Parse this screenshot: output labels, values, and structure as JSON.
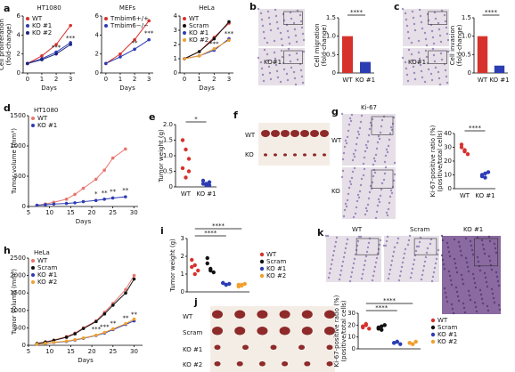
{
  "chart_data": [
    {
      "type": "line",
      "panel": "a",
      "title": "HT1080",
      "x": [
        0,
        1,
        2,
        3
      ],
      "xlim": [
        -0.3,
        3.3
      ],
      "xticks": [
        0,
        1,
        2,
        3
      ],
      "xlabel": "Days",
      "ylabel": [
        "Cell proliferation",
        "(fold-change)"
      ],
      "ylim": [
        0,
        6
      ],
      "yticks": [
        0,
        2,
        4,
        6
      ],
      "legend": "upper left",
      "series": [
        {
          "name": "WT",
          "color": "#d7312c",
          "values": [
            1,
            1.8,
            3,
            5
          ]
        },
        {
          "name": "KO #1",
          "color": "#2c3db3",
          "values": [
            1,
            1.5,
            2.2,
            3.2
          ]
        },
        {
          "name": "KO #2",
          "color": "#1a237e",
          "values": [
            1,
            1.4,
            2,
            3
          ]
        }
      ],
      "annotations": [
        "***",
        "***"
      ]
    },
    {
      "type": "line",
      "title": "MEFs",
      "x": [
        0,
        1,
        2,
        3
      ],
      "xlim": [
        -0.3,
        3.3
      ],
      "xticks": [
        0,
        1,
        2,
        3
      ],
      "xlabel": "Days",
      "ylim": [
        0,
        6
      ],
      "yticks": [
        0,
        2,
        4,
        6
      ],
      "legend": "upper left",
      "series": [
        {
          "name": "Tmbim6+/+",
          "color": "#d7312c",
          "values": [
            1,
            2,
            3.5,
            5.5
          ]
        },
        {
          "name": "Tmbim6−/−",
          "color": "#2c3db3",
          "values": [
            1,
            1.7,
            2.5,
            3.5
          ]
        }
      ],
      "annotations": [
        "**",
        "***"
      ]
    },
    {
      "type": "line",
      "title": "HeLa",
      "x": [
        0,
        1,
        2,
        3
      ],
      "xlim": [
        -0.3,
        3.3
      ],
      "xticks": [
        0,
        1,
        2,
        3
      ],
      "xlabel": "Days",
      "ylim": [
        0,
        4
      ],
      "yticks": [
        0,
        1,
        2,
        3,
        4
      ],
      "legend": "upper left",
      "series": [
        {
          "name": "WT",
          "color": "#d7312c",
          "values": [
            1,
            1.5,
            2.5,
            3.5
          ]
        },
        {
          "name": "Scram",
          "color": "#111111",
          "values": [
            1,
            1.5,
            2.4,
            3.6
          ]
        },
        {
          "name": "KO #1",
          "color": "#2c3db3",
          "values": [
            1,
            1.2,
            1.6,
            2.4
          ]
        },
        {
          "name": "KO #2",
          "color": "#f0a030",
          "values": [
            1,
            1.2,
            1.7,
            2.3
          ]
        }
      ],
      "annotations": [
        "***",
        "***"
      ]
    },
    {
      "type": "bar",
      "categories": [
        "WT",
        "KO #1"
      ],
      "values": [
        1,
        0.3
      ],
      "colors": [
        "#d7312c",
        "#2c3db3"
      ],
      "ylabel": [
        "Cell migration",
        "(fold-change)"
      ],
      "ylim": [
        0,
        1.5
      ],
      "yticks": [
        0,
        0.5,
        {
          "value": 1,
          "label": "1.0"
        },
        1.5
      ],
      "annotations": [
        "****"
      ]
    },
    {
      "type": "bar",
      "categories": [
        "WT",
        "KO #1"
      ],
      "values": [
        1,
        0.2
      ],
      "colors": [
        "#d7312c",
        "#2c3db3"
      ],
      "ylabel": [
        "Cell invasion",
        "(fold-change)"
      ],
      "ylim": [
        0,
        1.5
      ],
      "yticks": [
        0,
        0.5,
        {
          "value": 1,
          "label": "1.0"
        },
        1.5
      ],
      "annotations": [
        "****"
      ]
    },
    {
      "type": "line",
      "panel": "d",
      "title": "HT1080",
      "x": [
        7,
        9,
        11,
        14,
        16,
        18,
        21,
        23,
        25,
        28
      ],
      "xlim": [
        5,
        31
      ],
      "xticks": [
        5,
        10,
        15,
        20,
        25,
        30
      ],
      "xlabel": "Days",
      "ylabel": [
        "Tumor volume (mm³)"
      ],
      "ylim": [
        0,
        1500
      ],
      "yticks": [
        0,
        500,
        1000,
        1500
      ],
      "legend": "upper left",
      "series": [
        {
          "name": "WT",
          "color": "#e8756f",
          "values": [
            20,
            40,
            70,
            120,
            200,
            300,
            450,
            600,
            800,
            950
          ]
        },
        {
          "name": "KO #1",
          "color": "#2c3db3",
          "values": [
            20,
            30,
            40,
            50,
            60,
            80,
            100,
            120,
            140,
            160
          ]
        }
      ],
      "annotations": [
        "*",
        "**",
        "**",
        "**"
      ]
    },
    {
      "type": "strip",
      "panel": "e",
      "categories": [
        "WT",
        "KO #1"
      ],
      "colors": [
        "#d7312c",
        "#2c3db3"
      ],
      "values": [
        [
          1.5,
          1.2,
          0.9,
          0.6,
          0.3,
          0.5
        ],
        [
          0.1,
          0.05,
          0.15,
          0.2,
          0.1,
          0.05
        ]
      ],
      "ylabel": [
        "Tumor weight (g)"
      ],
      "ylim": [
        0,
        2
      ],
      "yticks": [
        0,
        0.5,
        {
          "value": 1,
          "label": "1.0"
        },
        1.5,
        {
          "value": 2,
          "label": "2.0"
        }
      ],
      "annotations": [
        "*"
      ]
    },
    {
      "type": "strip",
      "categories": [
        "WT",
        "KO #1"
      ],
      "colors": [
        "#d7312c",
        "#2c3db3"
      ],
      "values": [
        [
          30,
          27,
          25,
          32,
          28
        ],
        [
          10,
          8,
          12,
          9,
          11
        ]
      ],
      "ylabel": [
        "Ki-67-positive ratio (%)",
        "(positive/total cells)"
      ],
      "ylim": [
        0,
        40
      ],
      "yticks": [
        0,
        10,
        20,
        30,
        40
      ],
      "annotations": [
        "****"
      ]
    },
    {
      "type": "line",
      "panel": "h",
      "title": "HeLa",
      "x": [
        7,
        9,
        11,
        14,
        16,
        18,
        21,
        23,
        25,
        28,
        30
      ],
      "xlim": [
        5,
        32
      ],
      "xticks": [
        5,
        10,
        15,
        20,
        25,
        30
      ],
      "xlabel": "Days",
      "ylabel": [
        "Tumor volume (mm³)"
      ],
      "ylim": [
        0,
        2500
      ],
      "yticks": [
        0,
        500,
        1000,
        1500,
        2000,
        2500
      ],
      "legend": "upper left",
      "series": [
        {
          "name": "WT",
          "color": "#e8756f",
          "values": [
            50,
            100,
            150,
            250,
            350,
            500,
            700,
            950,
            1200,
            1600,
            2000
          ]
        },
        {
          "name": "Scram",
          "color": "#111111",
          "values": [
            50,
            90,
            140,
            230,
            330,
            480,
            680,
            900,
            1150,
            1500,
            1900
          ]
        },
        {
          "name": "KO #1",
          "color": "#2c3db3",
          "values": [
            30,
            50,
            80,
            110,
            150,
            200,
            280,
            350,
            450,
            600,
            700
          ]
        },
        {
          "name": "KO #2",
          "color": "#f0a030",
          "values": [
            30,
            55,
            85,
            120,
            160,
            210,
            290,
            370,
            470,
            620,
            750
          ]
        }
      ],
      "annotations": [
        "***",
        "***",
        "**",
        "**",
        "**"
      ]
    },
    {
      "type": "strip",
      "panel": "i",
      "categories": [
        "WT",
        "Scram",
        "KO #1",
        "KO #2"
      ],
      "colors": [
        "#d7312c",
        "#111111",
        "#2c3db3",
        "#f0a030"
      ],
      "legend": "right",
      "values": [
        [
          1.8,
          1.5,
          1.2,
          1.4,
          1.0
        ],
        [
          1.9,
          1.3,
          1.1,
          1.6,
          1.2
        ],
        [
          0.5,
          0.4,
          0.45,
          0.5,
          0.4
        ],
        [
          0.4,
          0.35,
          0.45,
          0.3,
          0.4
        ]
      ],
      "ylabel": [
        "Tumor weight (g)"
      ],
      "ylim": [
        0,
        3
      ],
      "yticks": [
        0,
        1,
        2,
        3
      ],
      "annotations": [
        "****",
        "****"
      ]
    },
    {
      "type": "strip",
      "categories": [
        "WT",
        "Scram",
        "KO #1",
        "KO #2"
      ],
      "colors": [
        "#d7312c",
        "#111111",
        "#2c3db3",
        "#f0a030"
      ],
      "legend": "right",
      "values": [
        [
          18,
          20,
          17,
          19,
          21
        ],
        [
          17,
          19,
          20,
          18,
          16
        ],
        [
          5,
          6,
          4,
          5,
          6
        ],
        [
          5,
          4,
          6,
          5,
          4
        ]
      ],
      "ylabel": [
        "Ki-67-positive ratio (%)",
        "(positive/total cells)"
      ],
      "ylim": [
        0,
        30
      ],
      "yticks": [
        0,
        10,
        20,
        30
      ],
      "annotations": [
        "****",
        "****"
      ]
    }
  ],
  "images": [
    {
      "panel": "b",
      "labels": [
        "KO#1"
      ]
    },
    {
      "panel": "c",
      "labels": [
        "KO#1"
      ]
    },
    {
      "panel": "f",
      "labels": [
        "WT",
        "KO"
      ]
    },
    {
      "panel": "g",
      "title": "Ki-67",
      "labels": [
        "WT",
        "KO"
      ]
    },
    {
      "panel": "j",
      "labels": [
        "WT",
        "Scram",
        "KO #1",
        "KO #2"
      ]
    },
    {
      "panel": "k",
      "labels": [
        "WT",
        "Scram",
        "KO #1"
      ]
    }
  ]
}
